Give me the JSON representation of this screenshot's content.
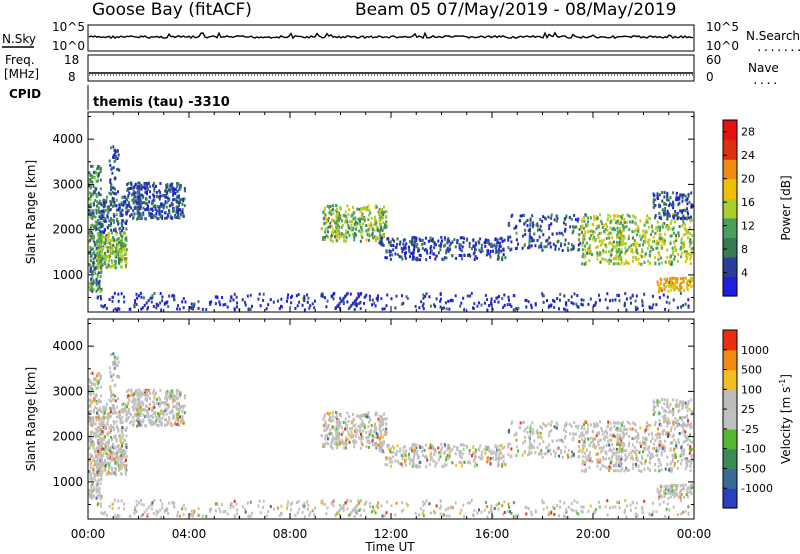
{
  "header": {
    "radar": "Goose Bay (fitACF)",
    "beam_date": "Beam 05 07/May/2019 - 08/May/2019"
  },
  "nsky_panel": {
    "left_label": "N.Sky",
    "right_label": "N.Search",
    "right_dots": "........",
    "ticks_left": [
      "10^5",
      "10^0"
    ],
    "ticks_right": [
      "10^5",
      "10^0"
    ]
  },
  "freq_panel": {
    "left_label_1": "Freq.",
    "left_label_2": "[MHz]",
    "right_label": "Nave",
    "right_dots": "....",
    "ticks_left": [
      "18",
      "8"
    ],
    "ticks_right": [
      "60",
      "0"
    ]
  },
  "cpid_panel": {
    "left_label": "CPID",
    "mode_text": "themis (tau) -3310"
  },
  "colors": {
    "power_scale": [
      "#1f1fdd",
      "#2b3f9a",
      "#3a7a55",
      "#4aa05a",
      "#a8cf2a",
      "#f0c000",
      "#f08a10",
      "#e03010",
      "#e81010"
    ],
    "velocity_scale": [
      "#2a40c0",
      "#3a6a9a",
      "#3a8a55",
      "#55b830",
      "#c0c0c0",
      "#bdbdb8",
      "#f0c020",
      "#f08a10",
      "#e83010"
    ]
  },
  "chart_data": [
    {
      "type": "heatmap",
      "parameter": "Power",
      "xlabel": "",
      "ylabel": "Slant Range [km]",
      "x_ticks": [
        "00:00",
        "04:00",
        "08:00",
        "12:00",
        "16:00",
        "20:00",
        "00:00"
      ],
      "x_range_hours": [
        0,
        24
      ],
      "y_ticks": [
        "4000",
        "3000",
        "2000",
        "1000"
      ],
      "y_range_km": [
        180,
        4600
      ],
      "colorbar": {
        "label": "Power [dB]",
        "ticks": [
          "28",
          "24",
          "20",
          "16",
          "12",
          "8",
          "4"
        ],
        "range": [
          0,
          30
        ]
      }
    },
    {
      "type": "heatmap",
      "parameter": "Velocity",
      "xlabel": "Time UT",
      "ylabel": "Slant Range [km]",
      "x_ticks": [
        "00:00",
        "04:00",
        "08:00",
        "12:00",
        "16:00",
        "20:00",
        "00:00"
      ],
      "x_range_hours": [
        0,
        24
      ],
      "y_ticks": [
        "4000",
        "3000",
        "2000",
        "1000"
      ],
      "y_range_km": [
        180,
        4600
      ],
      "colorbar": {
        "label": "Velocity [m s^-1]",
        "ticks": [
          "1000",
          "500",
          "100",
          "25",
          "-25",
          "-100",
          "-500",
          "-1000"
        ]
      }
    }
  ]
}
